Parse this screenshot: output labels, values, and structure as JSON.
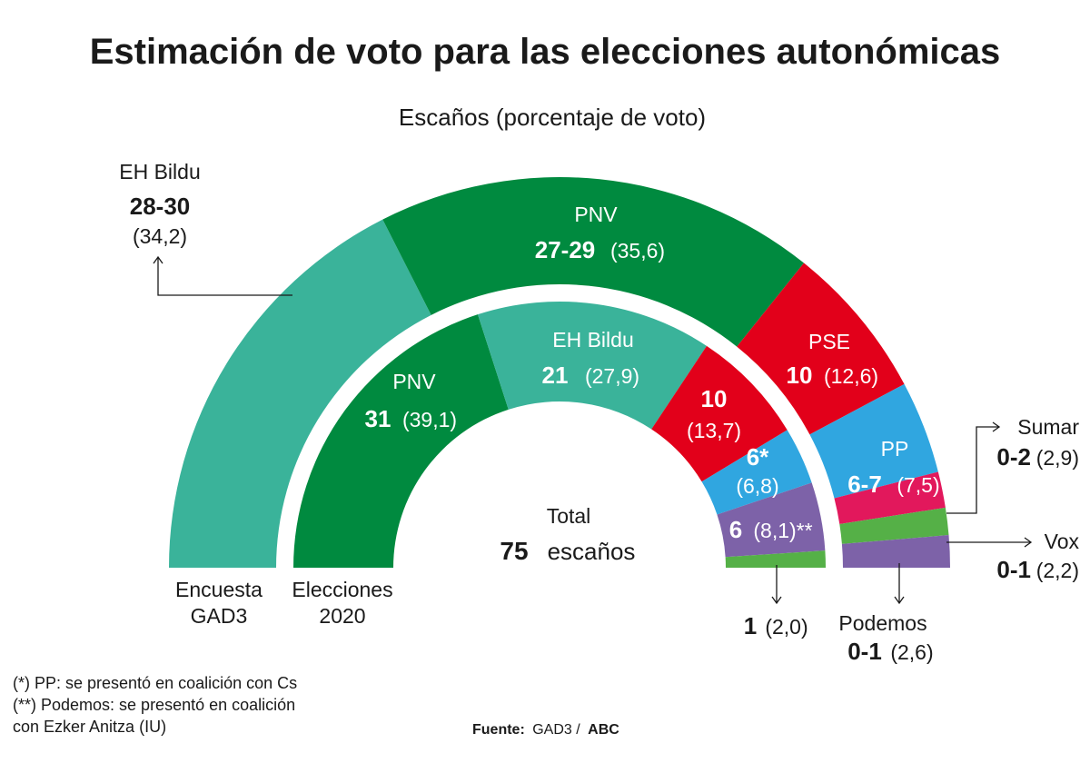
{
  "chart_data": {
    "type": "pie",
    "style": "semicircle-hemicycle",
    "title": "Estimación de voto para las elecciones autonómicas",
    "subtitle": "Escaños (porcentaje de voto)",
    "total_label": "Total",
    "total_seats": "75",
    "total_unit": "escaños",
    "rings": [
      {
        "name": "Encuesta GAD3",
        "label_line1": "Encuesta",
        "label_line2": "GAD3",
        "parties": [
          {
            "party": "EH Bildu",
            "seats": "28-30",
            "pct": "(34,2)",
            "value": 34.2,
            "color": "#3ab39a"
          },
          {
            "party": "PNV",
            "seats": "27-29",
            "pct": "(35,6)",
            "value": 35.6,
            "color": "#008a3f"
          },
          {
            "party": "PSE",
            "seats": "10",
            "pct": "(12,6)",
            "value": 12.6,
            "color": "#e2001a"
          },
          {
            "party": "PP",
            "seats": "6-7",
            "pct": "(7,5)",
            "value": 7.5,
            "color": "#30a6e0"
          },
          {
            "party": "Sumar",
            "seats": "0-2",
            "pct": "(2,9)",
            "value": 2.9,
            "color": "#e2185c"
          },
          {
            "party": "Vox",
            "seats": "0-1",
            "pct": "(2,2)",
            "value": 2.2,
            "color": "#55b047"
          },
          {
            "party": "Podemos",
            "seats": "0-1",
            "pct": "(2,6)",
            "value": 2.6,
            "color": "#7d62a8"
          }
        ]
      },
      {
        "name": "Elecciones 2020",
        "label_line1": "Elecciones",
        "label_line2": "2020",
        "parties": [
          {
            "party": "PNV",
            "seats": "31",
            "pct": "(39,1)",
            "value": 39.1,
            "color": "#008a3f"
          },
          {
            "party": "EH Bildu",
            "seats": "21",
            "pct": "(27,9)",
            "value": 27.9,
            "color": "#3ab39a"
          },
          {
            "party": "PSE",
            "seats": "10",
            "pct": "(13,7)",
            "value": 13.7,
            "color": "#e2001a"
          },
          {
            "party": "PP",
            "seats": "6*",
            "pct": "(6,8)",
            "value": 6.8,
            "color": "#30a6e0"
          },
          {
            "party": "Podemos",
            "seats": "6",
            "pct": "(8,1)**",
            "value": 8.1,
            "color": "#7d62a8"
          },
          {
            "party": "Vox",
            "seats": "1",
            "pct": "(2,0)",
            "value": 2.0,
            "color": "#55b047"
          }
        ]
      }
    ],
    "notes": [
      "(*) PP: se presentó en coalición con Cs",
      "(**) Podemos: se presentó en coalición",
      "con Ezker Anitza (IU)"
    ],
    "source_label": "Fuente:",
    "source_value": "GAD3 /",
    "source_brand": "ABC"
  }
}
